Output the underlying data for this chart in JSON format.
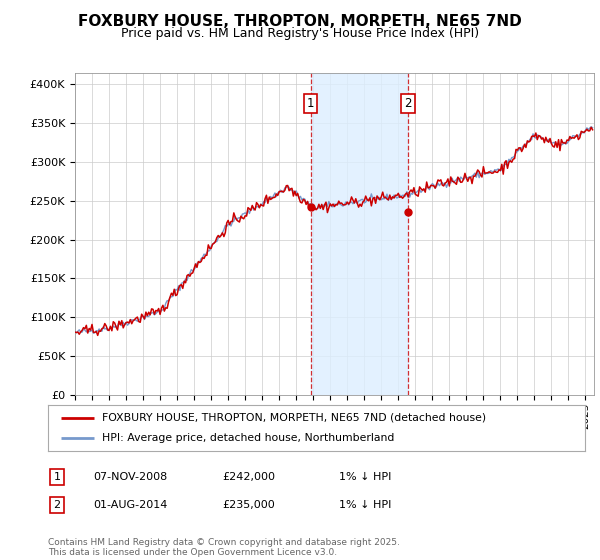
{
  "title": "FOXBURY HOUSE, THROPTON, MORPETH, NE65 7ND",
  "subtitle": "Price paid vs. HM Land Registry's House Price Index (HPI)",
  "ylabel_ticks": [
    "£0",
    "£50K",
    "£100K",
    "£150K",
    "£200K",
    "£250K",
    "£300K",
    "£350K",
    "£400K"
  ],
  "ytick_values": [
    0,
    50000,
    100000,
    150000,
    200000,
    250000,
    300000,
    350000,
    400000
  ],
  "ylim": [
    0,
    415000
  ],
  "xlim_start": 1995.0,
  "xlim_end": 2025.5,
  "hpi_color": "#7799cc",
  "price_color": "#cc0000",
  "marker1_date": 2008.85,
  "marker1_value": 242000,
  "marker2_date": 2014.58,
  "marker2_value": 235000,
  "shade_color": "#ddeeff",
  "legend1": "FOXBURY HOUSE, THROPTON, MORPETH, NE65 7ND (detached house)",
  "legend2": "HPI: Average price, detached house, Northumberland",
  "table_row1_num": "1",
  "table_row1_date": "07-NOV-2008",
  "table_row1_price": "£242,000",
  "table_row1_note": "1% ↓ HPI",
  "table_row2_num": "2",
  "table_row2_date": "01-AUG-2014",
  "table_row2_price": "£235,000",
  "table_row2_note": "1% ↓ HPI",
  "footer": "Contains HM Land Registry data © Crown copyright and database right 2025.\nThis data is licensed under the Open Government Licence v3.0.",
  "background_color": "#ffffff",
  "grid_color": "#cccccc"
}
